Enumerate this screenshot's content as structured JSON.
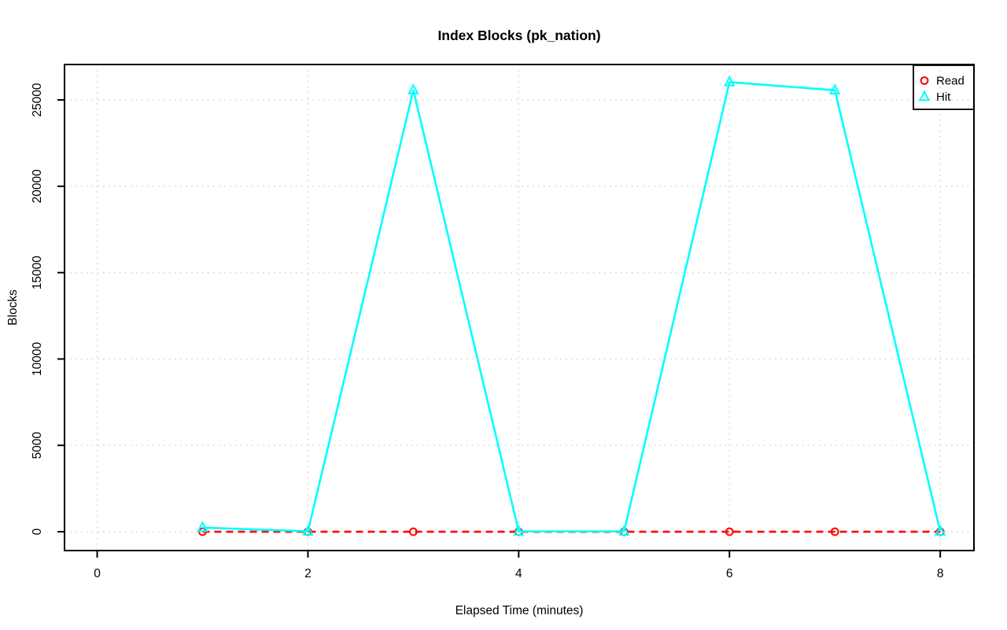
{
  "figure": {
    "title": "Index Blocks (pk_nation)",
    "x_axis_label": "Elapsed Time (minutes)",
    "y_axis_label": "Blocks"
  },
  "legend": {
    "position": "top-right",
    "items": [
      {
        "label": "Read",
        "marker": "open-circle-icon",
        "color": "#FF0000"
      },
      {
        "label": "Hit",
        "marker": "open-triangle-icon",
        "color": "#00FFFF"
      }
    ]
  },
  "chart_data": {
    "type": "line",
    "title": "Index Blocks (pk_nation)",
    "xlabel": "Elapsed Time (minutes)",
    "ylabel": "Blocks",
    "x": [
      1,
      2,
      3,
      4,
      5,
      6,
      7,
      8
    ],
    "series": [
      {
        "name": "Read",
        "color": "#FF0000",
        "linestyle": "dashed",
        "marker": "circle",
        "values": [
          0,
          0,
          0,
          0,
          0,
          0,
          0,
          0
        ]
      },
      {
        "name": "Hit",
        "color": "#00FFFF",
        "linestyle": "solid",
        "marker": "triangle",
        "values": [
          240,
          25,
          25570,
          20,
          20,
          26030,
          25560,
          20
        ]
      }
    ],
    "xlim": [
      -0.31,
      8.32
    ],
    "ylim": [
      -1090,
      27050
    ],
    "x_ticks": [
      0,
      2,
      4,
      6,
      8
    ],
    "y_ticks": [
      0,
      5000,
      10000,
      15000,
      20000,
      25000
    ],
    "grid": {
      "style": "dotted",
      "color": "#D3D3D3",
      "on": true
    },
    "legend_position": "top-right",
    "background": "#FFFFFF"
  },
  "colors": {
    "read_series": "#FF0000",
    "hit_series": "#00FFFF",
    "gridline": "#D3D3D3",
    "axis": "#000000",
    "background": "#FFFFFF"
  }
}
